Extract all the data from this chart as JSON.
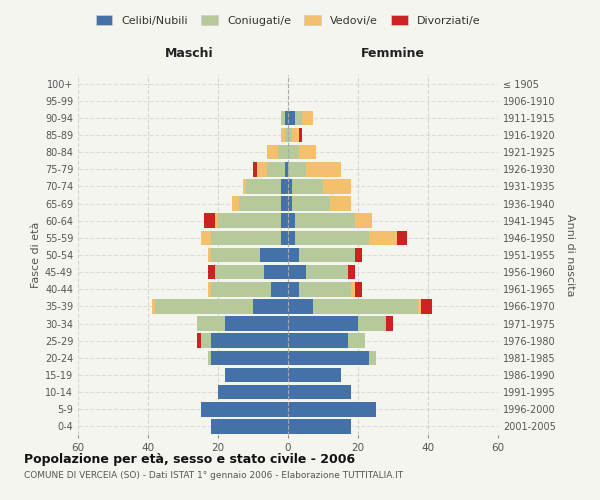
{
  "age_groups_bottom_to_top": [
    "0-4",
    "5-9",
    "10-14",
    "15-19",
    "20-24",
    "25-29",
    "30-34",
    "35-39",
    "40-44",
    "45-49",
    "50-54",
    "55-59",
    "60-64",
    "65-69",
    "70-74",
    "75-79",
    "80-84",
    "85-89",
    "90-94",
    "95-99",
    "100+"
  ],
  "birth_years_bottom_to_top": [
    "2001-2005",
    "1996-2000",
    "1991-1995",
    "1986-1990",
    "1981-1985",
    "1976-1980",
    "1971-1975",
    "1966-1970",
    "1961-1965",
    "1956-1960",
    "1951-1955",
    "1946-1950",
    "1941-1945",
    "1936-1940",
    "1931-1935",
    "1926-1930",
    "1921-1925",
    "1916-1920",
    "1911-1915",
    "1906-1910",
    "≤ 1905"
  ],
  "males": {
    "celibi": [
      22,
      25,
      20,
      18,
      22,
      22,
      18,
      10,
      5,
      7,
      8,
      2,
      2,
      2,
      2,
      1,
      0,
      0,
      1,
      0,
      0
    ],
    "coniugati": [
      0,
      0,
      0,
      0,
      1,
      3,
      8,
      28,
      17,
      14,
      14,
      20,
      18,
      12,
      10,
      5,
      3,
      1,
      1,
      0,
      0
    ],
    "vedovi": [
      0,
      0,
      0,
      0,
      0,
      0,
      0,
      1,
      1,
      0,
      1,
      3,
      1,
      2,
      1,
      3,
      3,
      1,
      0,
      0,
      0
    ],
    "divorziati": [
      0,
      0,
      0,
      0,
      0,
      1,
      0,
      0,
      0,
      2,
      0,
      0,
      3,
      0,
      0,
      1,
      0,
      0,
      0,
      0,
      0
    ]
  },
  "females": {
    "nubili": [
      18,
      25,
      18,
      15,
      23,
      17,
      20,
      7,
      3,
      5,
      3,
      2,
      2,
      1,
      1,
      0,
      0,
      0,
      2,
      0,
      0
    ],
    "coniugate": [
      0,
      0,
      0,
      0,
      2,
      5,
      8,
      30,
      15,
      12,
      16,
      21,
      17,
      11,
      9,
      5,
      3,
      1,
      2,
      0,
      0
    ],
    "vedove": [
      0,
      0,
      0,
      0,
      0,
      0,
      0,
      1,
      1,
      0,
      0,
      8,
      5,
      6,
      8,
      10,
      5,
      2,
      3,
      0,
      0
    ],
    "divorziate": [
      0,
      0,
      0,
      0,
      0,
      0,
      2,
      3,
      2,
      2,
      2,
      3,
      0,
      0,
      0,
      0,
      0,
      1,
      0,
      0,
      0
    ]
  },
  "colors": {
    "celibi": "#4472a8",
    "coniugati": "#b5c99a",
    "vedovi": "#f5c06e",
    "divorziati": "#cc2222"
  },
  "xlim": 60,
  "title": "Popolazione per età, sesso e stato civile - 2006",
  "subtitle": "COMUNE DI VERCEIA (SO) - Dati ISTAT 1° gennaio 2006 - Elaborazione TUTTITALIA.IT",
  "ylabel_left": "Fasce di età",
  "ylabel_right": "Anni di nascita",
  "xlabel_left": "Maschi",
  "xlabel_right": "Femmine",
  "bg_color": "#f5f5f0",
  "legend_labels": [
    "Celibi/Nubili",
    "Coniugati/e",
    "Vedovi/e",
    "Divorziati/e"
  ]
}
